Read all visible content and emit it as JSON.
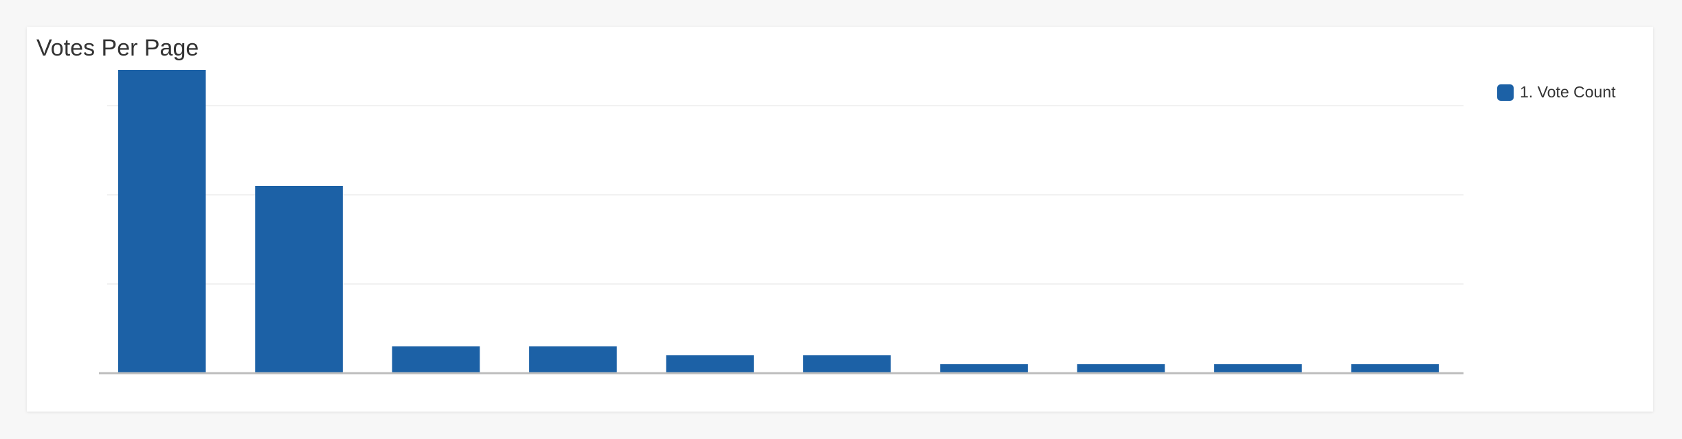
{
  "panel": {
    "title": "Votes Per Page"
  },
  "chart_data": {
    "type": "bar",
    "categories": [
      "",
      "",
      "",
      "",
      "",
      "",
      "",
      "",
      "",
      ""
    ],
    "series": [
      {
        "name": "1. Vote Count",
        "values": [
          17,
          10.5,
          1.5,
          1.5,
          1,
          1,
          0.5,
          0.5,
          0.5,
          0.5
        ]
      }
    ],
    "y_ticks": [
      "",
      "",
      "",
      ""
    ],
    "y_tick_values": [
      0,
      5,
      10,
      15
    ],
    "ylim": [
      0,
      17.5
    ],
    "grid": true,
    "legend_position": "top-right",
    "bar_color": "#1c61a6",
    "grid_color": "#e3e3e3",
    "axis_color": "#bdbdbd"
  }
}
